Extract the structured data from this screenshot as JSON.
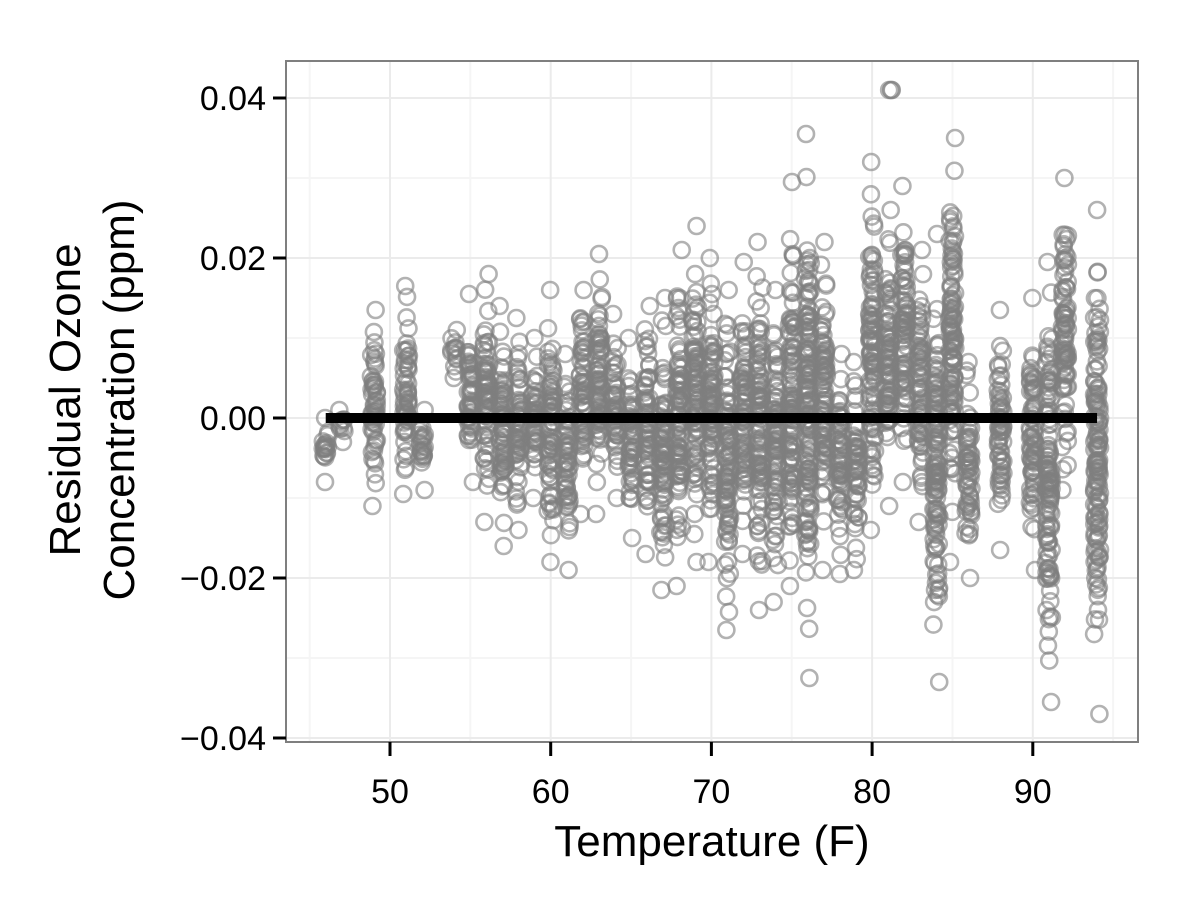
{
  "chart_data": {
    "type": "scatter",
    "title": "",
    "xlabel": "Temperature (F)",
    "ylabel_lines": [
      "Residual Ozone",
      "Concentration (ppm)"
    ],
    "ylabel": "Residual Ozone Concentration (ppm)",
    "xlim": [
      43.8,
      96.8
    ],
    "ylim": [
      -0.0405,
      0.0446
    ],
    "x_ticks": [
      50,
      60,
      70,
      80,
      90
    ],
    "x_tick_labels": [
      "50",
      "60",
      "70",
      "80",
      "90"
    ],
    "y_ticks": [
      0.04,
      0.02,
      0.0,
      -0.02,
      -0.04
    ],
    "y_tick_labels": [
      "0.04",
      "0.02",
      "0.00",
      "−0.02",
      "−0.04"
    ],
    "grid": true,
    "legend": null,
    "marker": {
      "shape": "open-circle",
      "color": "#7f7f7f",
      "alpha": 0.6
    },
    "reference_line": {
      "y": 0.0,
      "x_start": 46,
      "x_end": 94,
      "color": "#000000"
    },
    "columns_description": "Residuals grouped by integer temperature; each column lists approximate residual range [min, max] and notable outliers",
    "columns": [
      {
        "x": 46,
        "min": -0.008,
        "max": 0.0
      },
      {
        "x": 47,
        "min": -0.003,
        "max": 0.001
      },
      {
        "x": 49,
        "min": -0.011,
        "max": 0.0135
      },
      {
        "x": 51,
        "min": -0.0095,
        "max": 0.0165
      },
      {
        "x": 52,
        "min": -0.009,
        "max": 0.001
      },
      {
        "x": 54,
        "min": 0.005,
        "max": 0.011
      },
      {
        "x": 55,
        "min": -0.008,
        "max": 0.0155
      },
      {
        "x": 56,
        "min": -0.013,
        "max": 0.018
      },
      {
        "x": 57,
        "min": -0.016,
        "max": 0.014
      },
      {
        "x": 58,
        "min": -0.014,
        "max": 0.0125
      },
      {
        "x": 59,
        "min": -0.01,
        "max": 0.01
      },
      {
        "x": 60,
        "min": -0.018,
        "max": 0.016
      },
      {
        "x": 61,
        "min": -0.019,
        "max": 0.008
      },
      {
        "x": 62,
        "min": -0.012,
        "max": 0.016
      },
      {
        "x": 63,
        "min": -0.012,
        "max": 0.0205
      },
      {
        "x": 64,
        "min": -0.01,
        "max": 0.013
      },
      {
        "x": 65,
        "min": -0.015,
        "max": 0.01
      },
      {
        "x": 66,
        "min": -0.017,
        "max": 0.014
      },
      {
        "x": 67,
        "min": -0.0215,
        "max": 0.015
      },
      {
        "x": 68,
        "min": -0.021,
        "max": 0.021
      },
      {
        "x": 69,
        "min": -0.018,
        "max": 0.024
      },
      {
        "x": 70,
        "min": -0.018,
        "max": 0.02
      },
      {
        "x": 71,
        "min": -0.0265,
        "max": 0.016
      },
      {
        "x": 72,
        "min": -0.017,
        "max": 0.0195
      },
      {
        "x": 73,
        "min": -0.024,
        "max": 0.022
      },
      {
        "x": 74,
        "min": -0.023,
        "max": 0.016
      },
      {
        "x": 75,
        "min": -0.021,
        "max": 0.0295
      },
      {
        "x": 76,
        "min": -0.0325,
        "max": 0.0355
      },
      {
        "x": 77,
        "min": -0.019,
        "max": 0.022
      },
      {
        "x": 78,
        "min": -0.0195,
        "max": 0.008
      },
      {
        "x": 79,
        "min": -0.019,
        "max": 0.007
      },
      {
        "x": 80,
        "min": -0.014,
        "max": 0.032
      },
      {
        "x": 81,
        "min": -0.011,
        "max": 0.026
      },
      {
        "x": 81.2,
        "min": 0.041,
        "max": 0.041
      },
      {
        "x": 82,
        "min": -0.008,
        "max": 0.029
      },
      {
        "x": 83,
        "min": -0.013,
        "max": 0.021
      },
      {
        "x": 84,
        "min": -0.033,
        "max": 0.023
      },
      {
        "x": 85,
        "min": -0.018,
        "max": 0.035
      },
      {
        "x": 86,
        "min": -0.02,
        "max": 0.007
      },
      {
        "x": 88,
        "min": -0.0165,
        "max": 0.0135
      },
      {
        "x": 90,
        "min": -0.019,
        "max": 0.015
      },
      {
        "x": 91,
        "min": -0.0355,
        "max": 0.0195
      },
      {
        "x": 92,
        "min": -0.009,
        "max": 0.03
      },
      {
        "x": 94,
        "min": -0.037,
        "max": 0.026
      }
    ]
  },
  "colors": {
    "panel_border": "#7f7f7f",
    "grid_major": "#ebebeb",
    "grid_minor": "#f5f5f5",
    "point": "#7f7f7f",
    "line": "#000000"
  }
}
